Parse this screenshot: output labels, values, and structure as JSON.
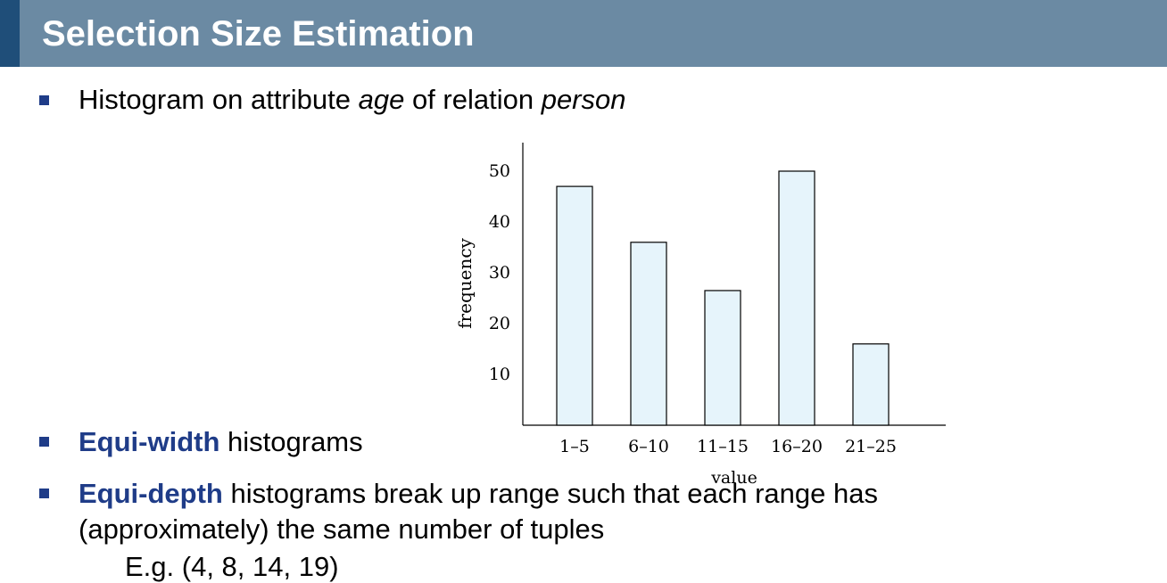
{
  "header": {
    "title": "Selection Size Estimation"
  },
  "bullets": {
    "b1": {
      "pre": "Histogram on attribute ",
      "em1": "age",
      "mid": " of relation ",
      "em2": "person"
    },
    "b2": {
      "term": "Equi-width",
      "rest": " histograms"
    },
    "b3": {
      "term": "Equi-depth",
      "rest": " histograms break up range such that each range has",
      "line2": "(approximately) the same number of tuples"
    },
    "b4": {
      "text": "E.g. (4, 8, 14, 19)"
    }
  },
  "colors": {
    "header_bg": "#6b8aa3",
    "accent": "#1f4e79",
    "term": "#1f3c88",
    "bar_fill": "#e6f4fb"
  },
  "chart_data": {
    "type": "bar",
    "categories": [
      "1–5",
      "6–10",
      "11–15",
      "16–20",
      "21–25"
    ],
    "values": [
      47,
      36,
      26.5,
      50,
      16
    ],
    "yticks": [
      10,
      20,
      30,
      40,
      50
    ],
    "ylim": [
      0,
      55
    ],
    "xlabel": "value",
    "ylabel": "frequency",
    "grid": false
  }
}
